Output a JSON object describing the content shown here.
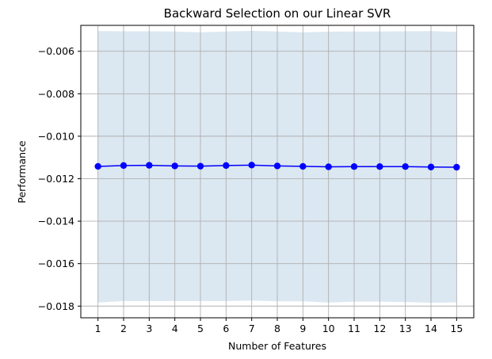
{
  "chart_data": {
    "type": "line",
    "title": "Backward Selection on our Linear SVR",
    "xlabel": "Number of Features",
    "ylabel": "Performance",
    "x": [
      1,
      2,
      3,
      4,
      5,
      6,
      7,
      8,
      9,
      10,
      11,
      12,
      13,
      14,
      15
    ],
    "xlim": [
      0.33,
      15.67
    ],
    "ylim": [
      -0.01855,
      -0.00478
    ],
    "yticks": [
      -0.018,
      -0.016,
      -0.014,
      -0.012,
      -0.01,
      -0.008,
      -0.006
    ],
    "ytick_labels": [
      "−0.018",
      "−0.016",
      "−0.014",
      "−0.012",
      "−0.010",
      "−0.008",
      "−0.006"
    ],
    "grid": true,
    "series": [
      {
        "values": [
          -0.01142,
          -0.01138,
          -0.01137,
          -0.0114,
          -0.01141,
          -0.01138,
          -0.01136,
          -0.0114,
          -0.01142,
          -0.01144,
          -0.01143,
          -0.01143,
          -0.01143,
          -0.01145,
          -0.01146
        ],
        "upper": [
          -0.00505,
          -0.00506,
          -0.00506,
          -0.00507,
          -0.00511,
          -0.00507,
          -0.00504,
          -0.00507,
          -0.00511,
          -0.00508,
          -0.00507,
          -0.00507,
          -0.00506,
          -0.00505,
          -0.00509
        ],
        "lower": [
          -0.01783,
          -0.01776,
          -0.01776,
          -0.01776,
          -0.01776,
          -0.01776,
          -0.01774,
          -0.01777,
          -0.01777,
          -0.01783,
          -0.01779,
          -0.01779,
          -0.01781,
          -0.01784,
          -0.01782
        ],
        "color": "#0000ff",
        "band_color": "#a9c5dd"
      }
    ]
  }
}
